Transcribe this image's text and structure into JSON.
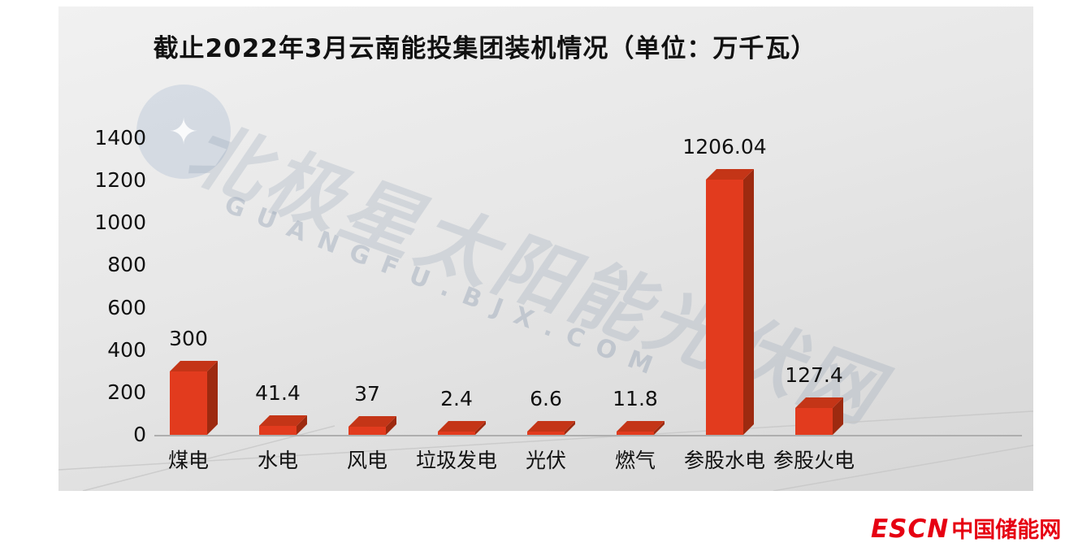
{
  "title": "截止2022年3月云南能投集团装机情况（单位：万千瓦）",
  "watermark": {
    "line1": "北极星太阳能光伏网",
    "line2": "GUANGFU.BJX.COM"
  },
  "logo": {
    "escn": "ESCN",
    "site": "中国储能网",
    "color": "#e60012"
  },
  "chart_data": {
    "type": "bar",
    "title": "截止2022年3月云南能投集团装机情况（单位：万千瓦）",
    "categories": [
      "煤电",
      "水电",
      "风电",
      "垃圾发电",
      "光伏",
      "燃气",
      "参股水电",
      "参股火电"
    ],
    "values": [
      300,
      41.4,
      37,
      2.4,
      6.6,
      11.8,
      1206.04,
      127.4
    ],
    "value_labels": [
      "300",
      "41.4",
      "37",
      "2.4",
      "6.6",
      "11.8",
      "1206.04",
      "127.4"
    ],
    "xlabel": "",
    "ylabel": "万千瓦",
    "ylim": [
      0,
      1400
    ],
    "yticks": [
      0,
      200,
      400,
      600,
      800,
      1000,
      1200,
      1400
    ],
    "grid": false,
    "legend": false,
    "bar_color": "#e23b1e",
    "bar_side_color": "#9d2a10",
    "bar_top_color": "#c43517"
  }
}
